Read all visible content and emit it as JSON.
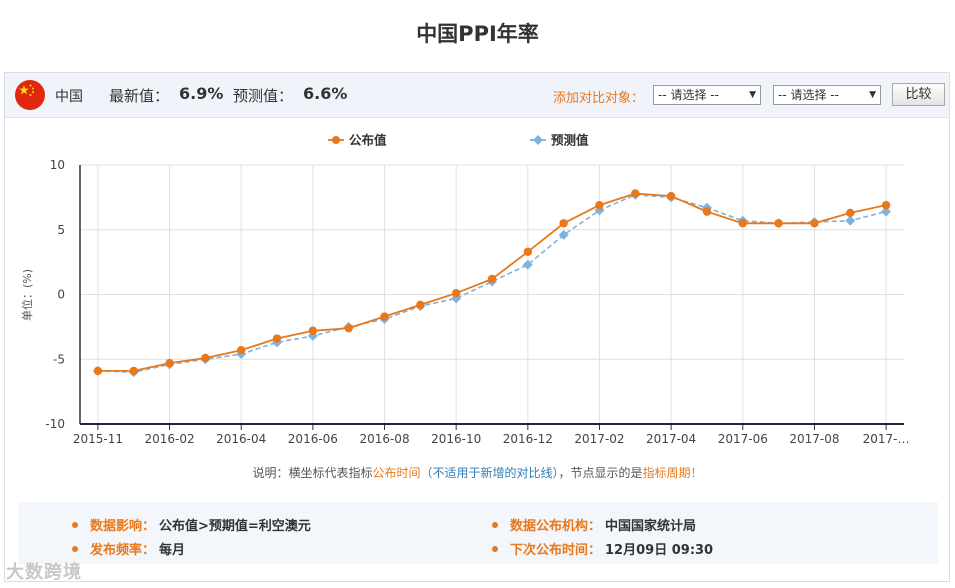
{
  "page": {
    "title": "中国PPI年率"
  },
  "header": {
    "country": "中国",
    "latest_label": "最新值：",
    "latest_value": "6.9%",
    "forecast_label": "预测值：",
    "forecast_value": "6.6%",
    "compare_label": "添加对比对象：",
    "select1": "-- 请选择 --",
    "select2": "-- 请选择 --",
    "compare_button": "比较"
  },
  "chart_data": {
    "type": "line",
    "ylabel": "单位：(%)",
    "ylim": [
      -10,
      10
    ],
    "yticks": [
      10,
      5,
      0,
      -5,
      -10
    ],
    "x_tick_labels": [
      "2015-11",
      "2016-02",
      "2016-04",
      "2016-06",
      "2016-08",
      "2016-10",
      "2016-12",
      "2017-02",
      "2017-04",
      "2017-06",
      "2017-08",
      "2017-…"
    ],
    "x": [
      "2015-11",
      "2015-12",
      "2016-01",
      "2016-02",
      "2016-03",
      "2016-04",
      "2016-05",
      "2016-06",
      "2016-07",
      "2016-08",
      "2016-09",
      "2016-10",
      "2016-11",
      "2016-12",
      "2017-01",
      "2017-02",
      "2017-03",
      "2017-04",
      "2017-05",
      "2017-06",
      "2017-07",
      "2017-08",
      "2017-09"
    ],
    "legend_position": "top-center",
    "grid": true,
    "series": [
      {
        "name": "公布值",
        "color": "#e8781c",
        "dash": false,
        "values": [
          -5.9,
          -5.9,
          -5.3,
          -4.9,
          -4.3,
          -3.4,
          -2.8,
          -2.6,
          -1.7,
          -0.8,
          0.1,
          1.2,
          3.3,
          5.5,
          6.9,
          7.8,
          7.6,
          6.4,
          5.5,
          5.5,
          5.5,
          6.3,
          6.9
        ]
      },
      {
        "name": "预测值",
        "color": "#7fb2dc",
        "dash": true,
        "values": [
          -5.9,
          -6.0,
          -5.4,
          -5.0,
          -4.6,
          -3.7,
          -3.2,
          -2.5,
          -1.9,
          -0.9,
          -0.3,
          1.0,
          2.3,
          4.6,
          6.5,
          7.7,
          7.5,
          6.7,
          5.7,
          5.5,
          5.6,
          5.7,
          6.4
        ]
      }
    ]
  },
  "note": {
    "prefix": "说明：横坐标代表指标",
    "time": "公布时间",
    "paren": "（不适用于新增的对比线）",
    "middle": "，节点显示的是",
    "period": "指标周期",
    "suffix": "！"
  },
  "info": {
    "impact_label": "数据影响：",
    "impact_value": "公布值>预期值=利空澳元",
    "agency_label": "数据公布机构：",
    "agency_value": "中国国家统计局",
    "frequency_label": "发布频率：",
    "frequency_value": "每月",
    "next_label": "下次公布时间：",
    "next_value": "12月09日 09:30"
  },
  "watermark": "大数跨境"
}
